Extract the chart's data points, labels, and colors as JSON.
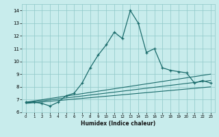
{
  "title": "",
  "xlabel": "Humidex (Indice chaleur)",
  "bg_color": "#c8ecec",
  "grid_color": "#8ec8c8",
  "line_color": "#1a6b6b",
  "xlim": [
    -0.5,
    23.5
  ],
  "ylim": [
    6.0,
    14.5
  ],
  "xticks": [
    0,
    1,
    2,
    3,
    4,
    5,
    6,
    7,
    8,
    9,
    10,
    11,
    12,
    13,
    14,
    15,
    16,
    17,
    18,
    19,
    20,
    21,
    22,
    23
  ],
  "yticks": [
    6,
    7,
    8,
    9,
    10,
    11,
    12,
    13,
    14
  ],
  "main_x": [
    0,
    1,
    2,
    3,
    4,
    5,
    6,
    7,
    8,
    9,
    10,
    11,
    12,
    13,
    14,
    15,
    16,
    17,
    18,
    19,
    20,
    21,
    22,
    23
  ],
  "main_y": [
    6.8,
    6.8,
    6.7,
    6.5,
    6.8,
    7.3,
    7.5,
    8.3,
    9.5,
    10.5,
    11.3,
    12.3,
    11.8,
    14.0,
    13.0,
    10.7,
    11.0,
    9.5,
    9.3,
    9.2,
    9.1,
    8.3,
    8.5,
    8.3
  ],
  "line2_x": [
    0,
    23
  ],
  "line2_y": [
    6.8,
    9.0
  ],
  "line3_x": [
    0,
    23
  ],
  "line3_y": [
    6.75,
    8.5
  ],
  "line4_x": [
    0,
    23
  ],
  "line4_y": [
    6.7,
    8.0
  ]
}
